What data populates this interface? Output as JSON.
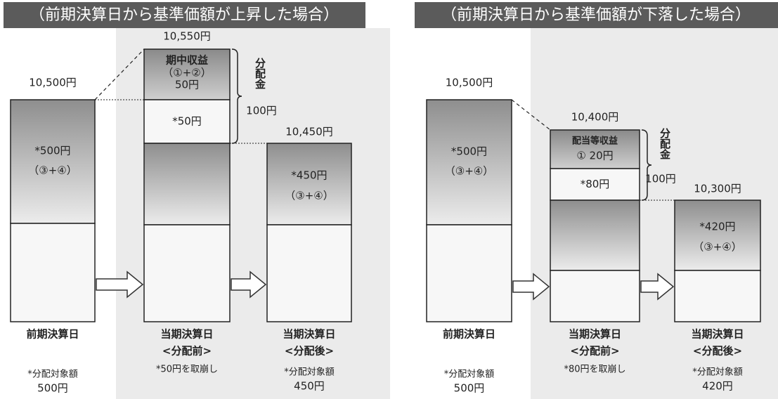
{
  "panels": [
    {
      "header": "（前期決算日から基準価額が上昇した場合）",
      "before": {
        "value_label": "10,500円",
        "inner": "*500円",
        "inner_note": "（③+④）",
        "date": "前期決算日",
        "note": "*分配対象額",
        "amount": "500円"
      },
      "middle": {
        "value_label": "10,550円",
        "income_title": "期中収益",
        "income_note": "（①+②）",
        "income_amount": "50円",
        "drawdown": "*50円",
        "date": "当期決算日",
        "phase": "<分配前>",
        "note": "*50円を取崩し"
      },
      "distribution": {
        "label": "分配金",
        "amount": "100円"
      },
      "after": {
        "value_label": "10,450円",
        "inner": "*450円",
        "inner_note": "（③+④）",
        "date": "当期決算日",
        "phase": "<分配後>",
        "note": "*分配対象額",
        "amount": "450円"
      }
    },
    {
      "header": "（前期決算日から基準価額が下落した場合）",
      "before": {
        "value_label": "10,500円",
        "inner": "*500円",
        "inner_note": "（③+④）",
        "date": "前期決算日",
        "note": "*分配対象額",
        "amount": "500円"
      },
      "middle": {
        "value_label": "10,400円",
        "income_title": "配当等収益",
        "income_amount": "①  20円",
        "drawdown": "*80円",
        "date": "当期決算日",
        "phase": "<分配前>",
        "note": "*80円を取崩し"
      },
      "distribution": {
        "label": "分配金",
        "amount": "100円"
      },
      "after": {
        "value_label": "10,300円",
        "inner": "*420円",
        "inner_note": "（③+④）",
        "date": "当期決算日",
        "phase": "<分配後>",
        "note": "*分配対象額",
        "amount": "420円"
      }
    }
  ]
}
